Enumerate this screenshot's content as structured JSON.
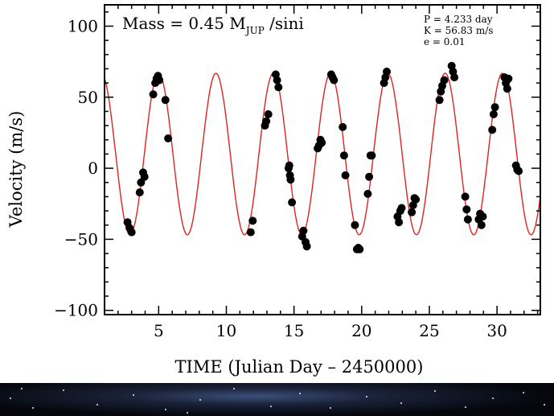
{
  "chart_data": {
    "type": "scatter",
    "title": "",
    "xlabel": "TIME  (Julian Day – 2450000)",
    "ylabel": "Velocity  (m/s)",
    "xlim": [
      1,
      33.2
    ],
    "ylim": [
      -103,
      115
    ],
    "x_ticks": [
      5,
      10,
      15,
      20,
      25,
      30
    ],
    "y_ticks": [
      -100,
      -50,
      0,
      50,
      100
    ],
    "grid": false,
    "annotations": {
      "mass_main": "Mass = 0.45 M",
      "mass_sub": "JUP",
      "mass_tail": " /sini",
      "period": "P = 4.233 day",
      "amplitude": "K = 56.83 m/s",
      "eccentricity": "e = 0.01"
    },
    "fit": {
      "period": 4.233,
      "amplitude": 56.83,
      "offset": 10,
      "phase_peak_x": 5.0,
      "color": "#dd2222"
    },
    "points_color": "#000000",
    "series": [
      {
        "x": [
          2.7,
          2.85,
          3.0,
          3.6,
          3.7,
          3.85,
          3.95,
          4.6,
          4.75,
          4.85,
          4.95,
          5.05,
          5.5,
          5.7,
          11.8,
          11.95,
          12.85,
          12.95,
          13.1,
          13.65,
          13.75,
          13.85,
          14.6,
          14.65,
          14.7,
          14.75,
          14.85,
          15.6,
          15.7,
          15.85,
          15.95,
          16.75,
          16.85,
          16.95,
          17.05,
          17.75,
          17.85,
          17.95,
          18.6,
          18.7,
          18.8,
          19.5,
          19.65,
          19.75,
          19.85,
          20.45,
          20.55,
          20.65,
          20.75,
          21.65,
          21.75,
          21.85,
          22.65,
          22.75,
          22.85,
          22.95,
          23.7,
          23.8,
          23.9,
          24.0,
          25.75,
          25.85,
          25.95,
          26.1,
          26.65,
          26.75,
          26.85,
          27.65,
          27.75,
          27.85,
          28.65,
          28.75,
          28.85,
          28.95,
          29.65,
          29.75,
          29.85,
          30.55,
          30.65,
          30.75,
          30.85,
          31.4,
          31.5,
          31.6
        ],
        "y": [
          -38,
          -42,
          -45,
          -17,
          -10,
          -3,
          -6,
          52,
          60,
          63,
          65,
          62,
          48,
          21,
          -45,
          -37,
          30,
          33,
          38,
          66,
          62,
          57,
          0,
          2,
          -5,
          -8,
          -24,
          -48,
          -44,
          -52,
          -55,
          14,
          16,
          20,
          18,
          66,
          64,
          62,
          29,
          9,
          -5,
          -40,
          -57,
          -56,
          -57,
          -18,
          -6,
          9,
          9,
          60,
          64,
          68,
          -34,
          -38,
          -30,
          -28,
          -31,
          -26,
          -21,
          -22,
          48,
          54,
          58,
          62,
          72,
          68,
          64,
          -20,
          -29,
          -36,
          -36,
          -32,
          -40,
          -34,
          27,
          38,
          43,
          64,
          60,
          56,
          63,
          2,
          -1,
          -2
        ]
      }
    ]
  }
}
